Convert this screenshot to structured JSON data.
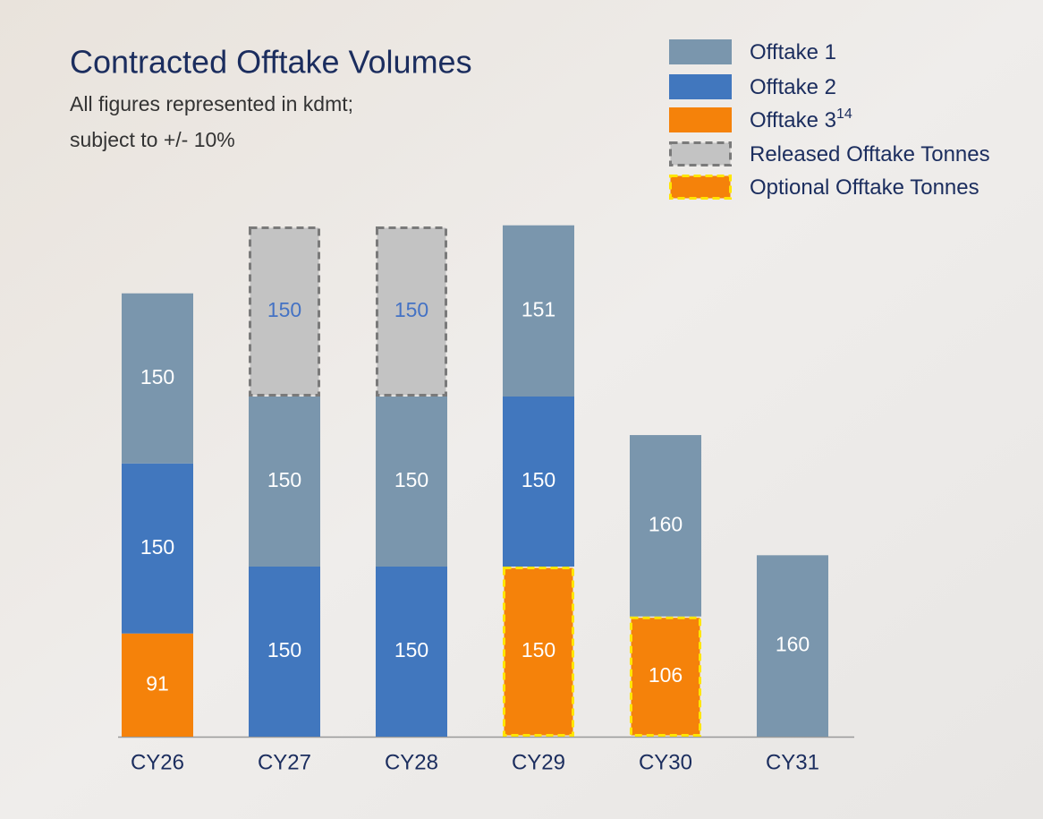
{
  "chart_data": {
    "type": "stacked_bar",
    "title": "Contracted Offtake Volumes",
    "subtitle": [
      "All figures represented in kdmt;",
      "subject to +/- 10%"
    ],
    "categories": [
      "CY26",
      "CY27",
      "CY28",
      "CY29",
      "CY30",
      "CY31"
    ],
    "series": [
      {
        "name": "Offtake 1",
        "color": "#7a96ad",
        "label_color": "#ffffff",
        "values": [
          150,
          150,
          150,
          151,
          160,
          160
        ]
      },
      {
        "name": "Offtake 2",
        "color": "#4177be",
        "label_color": "#ffffff",
        "values": [
          150,
          150,
          150,
          150,
          null,
          null
        ]
      },
      {
        "name": "Offtake 3",
        "name_superscript": "14",
        "color": "#f5820a",
        "label_color": "#ffffff",
        "values": [
          91,
          null,
          null,
          null,
          null,
          null
        ]
      },
      {
        "name": "Released Offtake Tonnes",
        "color": "#c3c3c3",
        "border": "#7a7a7a",
        "dashed": true,
        "label_color": "#4472c4",
        "values": [
          null,
          150,
          150,
          null,
          null,
          null
        ]
      },
      {
        "name": "Optional Offtake Tonnes",
        "color": "#f5820a",
        "border": "#ffe600",
        "dashed": true,
        "label_color": "#ffffff",
        "values": [
          null,
          null,
          null,
          150,
          106,
          null
        ]
      }
    ],
    "stack_order": [
      2,
      4,
      1,
      0,
      3
    ]
  }
}
